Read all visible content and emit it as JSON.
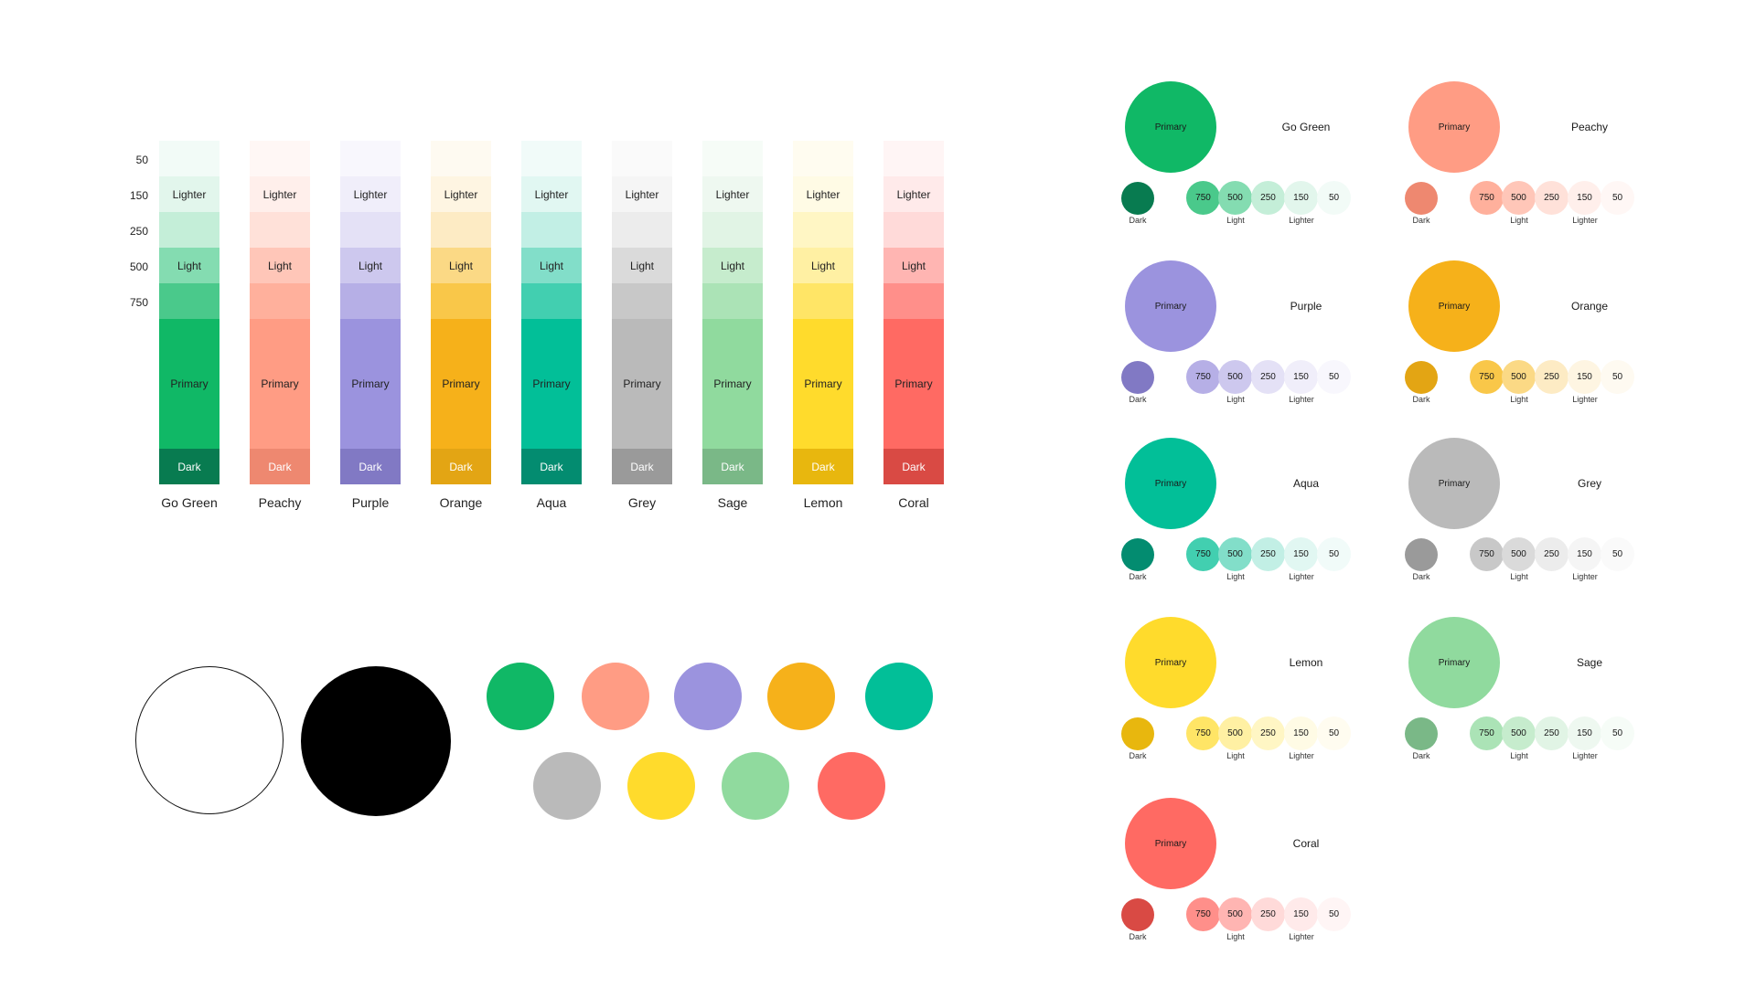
{
  "scale_labels": [
    "50",
    "150",
    "250",
    "500",
    "750"
  ],
  "swatch_labels": {
    "lighter": "Lighter",
    "light": "Light",
    "primary": "Primary",
    "dark": "Dark"
  },
  "palettes": [
    {
      "name": "Go Green",
      "primary": "#10b866",
      "dark": "#087b50",
      "s50": "#f2fbf7",
      "s150": "#e2f6ec",
      "s250": "#c4eed8",
      "s500": "#84dcb1",
      "s750": "#4ac98b"
    },
    {
      "name": "Peachy",
      "primary": "#ff9c84",
      "dark": "#ee8870",
      "s50": "#fff7f5",
      "s150": "#ffefeb",
      "s250": "#ffe1d9",
      "s500": "#ffc6b8",
      "s750": "#ffb09c"
    },
    {
      "name": "Purple",
      "primary": "#9b93de",
      "dark": "#8179c4",
      "s50": "#f8f7fd",
      "s150": "#f0eefa",
      "s250": "#e4e1f6",
      "s500": "#cdc8ee",
      "s750": "#b6afe6"
    },
    {
      "name": "Orange",
      "primary": "#f6b11a",
      "dark": "#e3a514",
      "s50": "#fefaf1",
      "s150": "#fef5e2",
      "s250": "#fdebc4",
      "s500": "#fbd985",
      "s750": "#f9c749"
    },
    {
      "name": "Aqua",
      "primary": "#02bf98",
      "dark": "#038c70",
      "s50": "#f1fbf9",
      "s150": "#e1f7f2",
      "s250": "#c2efe5",
      "s500": "#82dec9",
      "s750": "#42cfb0"
    },
    {
      "name": "Grey",
      "primary": "#bababa",
      "dark": "#9a9a9a",
      "s50": "#fafafa",
      "s150": "#f5f5f5",
      "s250": "#ececec",
      "s500": "#dadada",
      "s750": "#c8c8c8"
    },
    {
      "name": "Sage",
      "primary": "#90da9e",
      "dark": "#7ab887",
      "s50": "#f6fcf7",
      "s150": "#eef8f0",
      "s250": "#e1f4e5",
      "s500": "#c6eccd",
      "s750": "#abe3b6"
    },
    {
      "name": "Lemon",
      "primary": "#ffdb2c",
      "dark": "#e8b70e",
      "s50": "#fffcf0",
      "s150": "#fffbe5",
      "s250": "#fff6c4",
      "s500": "#fff0a3",
      "s750": "#ffe566"
    },
    {
      "name": "Coral",
      "primary": "#ff6a63",
      "dark": "#d94a44",
      "s50": "#fff5f5",
      "s150": "#ffeaea",
      "s250": "#ffdad9",
      "s500": "#ffb5b2",
      "s750": "#ff8f8a"
    }
  ],
  "base_circles": {
    "white": "#ffffff",
    "black": "#000000"
  },
  "card_labels": {
    "primary": "Primary",
    "dark": "Dark",
    "light": "Light",
    "lighter": "Lighter",
    "t750": "750",
    "t500": "500",
    "t250": "250",
    "t150": "150",
    "t50": "50"
  }
}
